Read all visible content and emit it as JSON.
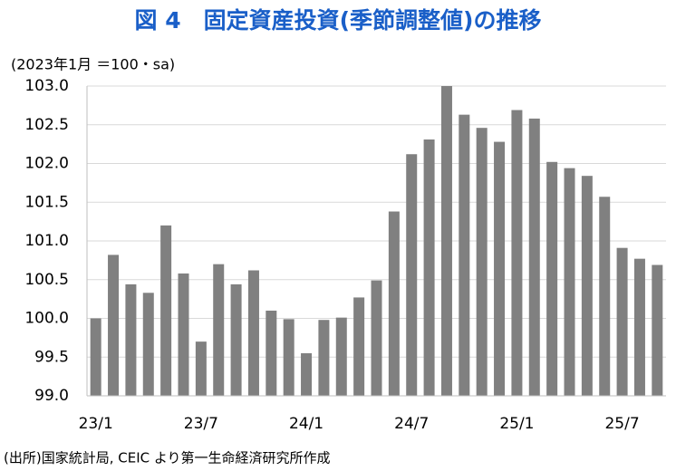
{
  "chart_data": {
    "type": "bar",
    "title": "図 4　固定資産投資(季節調整値)の推移",
    "y_label": "(2023年1月 ＝100・sa)",
    "source": "(出所)国家統計局, CEIC より第一生命経済研究所作成",
    "categories": [
      "23/1",
      null,
      null,
      null,
      null,
      null,
      "23/7",
      null,
      null,
      null,
      null,
      null,
      "24/1",
      null,
      null,
      null,
      null,
      null,
      "24/7",
      null,
      null,
      null,
      null,
      null,
      "25/1",
      null,
      null,
      null,
      null,
      null,
      "25/7",
      null,
      null
    ],
    "values": [
      100.0,
      100.82,
      100.44,
      100.33,
      101.2,
      100.58,
      99.7,
      100.7,
      100.44,
      100.62,
      100.1,
      99.99,
      99.55,
      99.98,
      100.01,
      100.27,
      100.49,
      101.38,
      102.12,
      102.31,
      103.0,
      102.63,
      102.46,
      102.28,
      102.69,
      102.58,
      102.02,
      101.94,
      101.84,
      101.57,
      100.91,
      100.77,
      100.69
    ],
    "color": "#808080",
    "ylim": [
      99.0,
      103.0
    ],
    "yticks": [
      {
        "value": 99.0,
        "label": "99.0"
      },
      {
        "value": 99.5,
        "label": "99.5"
      },
      {
        "value": 100.0,
        "label": "100.0"
      },
      {
        "value": 100.5,
        "label": "100.5"
      },
      {
        "value": 101.0,
        "label": "101.0"
      },
      {
        "value": 101.5,
        "label": "101.5"
      },
      {
        "value": 102.0,
        "label": "102.0"
      },
      {
        "value": 102.5,
        "label": "102.5"
      },
      {
        "value": 103.0,
        "label": "103.0"
      }
    ],
    "grid": true
  }
}
